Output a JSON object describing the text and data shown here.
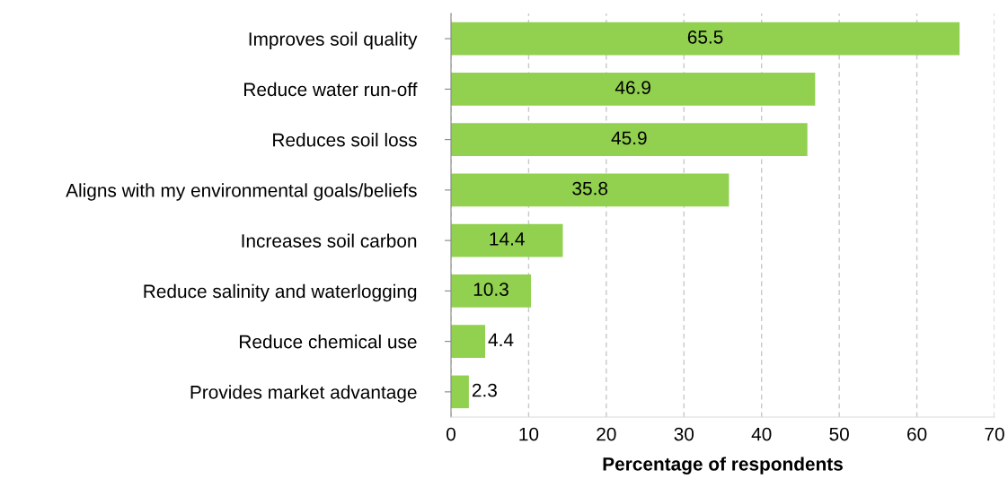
{
  "chart_data": {
    "type": "bar",
    "orientation": "horizontal",
    "xlabel": "Percentage of respondents",
    "categories": [
      "Improves soil quality",
      "Reduce water run-off",
      "Reduces soil loss",
      "Aligns with my environmental goals/beliefs",
      "Increases soil carbon",
      "Reduce salinity and waterlogging",
      "Reduce chemical use",
      "Provides market advantage"
    ],
    "values": [
      65.5,
      46.9,
      45.9,
      35.8,
      14.4,
      10.3,
      4.4,
      2.3
    ],
    "color": "#92d050",
    "xlim": [
      0,
      70
    ],
    "xticks": [
      0,
      10,
      20,
      30,
      40,
      50,
      60,
      70
    ],
    "grid": "x",
    "data_labels": true
  }
}
